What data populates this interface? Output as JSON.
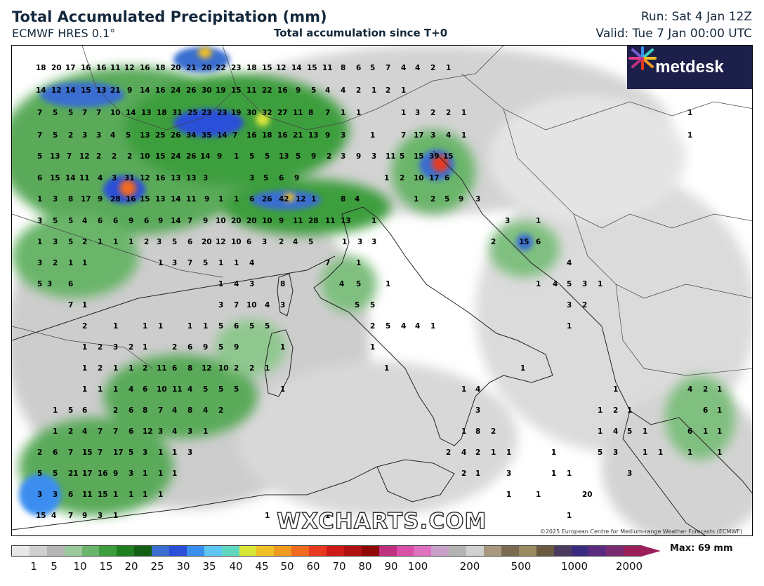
{
  "header": {
    "title": "Total Accumulated Precipitation (mm)",
    "model": "ECMWF HRES 0.1°",
    "subtitle": "Total accumulation since T+0",
    "run": "Run: Sat 4 Jan 12Z",
    "valid": "Valid: Tue 7 Jan 00:00 UTC"
  },
  "branding": {
    "logo_text": "metdesk",
    "watermark": "WXCHARTS.COM",
    "copyright": "©2025 European Centre for Medium-range Weather Forecasts (ECMWF)"
  },
  "colorbar": {
    "max_label": "Max: 69 mm",
    "ticks": [
      "1",
      "5",
      "10",
      "15",
      "20",
      "25",
      "30",
      "35",
      "40",
      "45",
      "50",
      "60",
      "70",
      "80",
      "90",
      "100",
      "200",
      "500",
      "1000",
      "2000"
    ],
    "colors": [
      "#e8e8e8",
      "#cfcfcf",
      "#b5b5b5",
      "#9cc99c",
      "#6bb56b",
      "#3d9e3d",
      "#1f7f1f",
      "#145e14",
      "#3a6ed0",
      "#2a4fd8",
      "#3a8ef0",
      "#5ec6f0",
      "#60d8c0",
      "#d8e63a",
      "#f0c028",
      "#f09a20",
      "#f06a20",
      "#e83a20",
      "#d01a1a",
      "#b01010",
      "#900808",
      "#c03080",
      "#d850a8",
      "#e070c0",
      "#c8a0c8",
      "#b4b4b4",
      "#d0d0d0",
      "#a89880",
      "#7a6a50",
      "#9a8a60",
      "#6a5a40",
      "#4a3a60",
      "#3a2a80",
      "#5a2a80",
      "#7a2a70",
      "#9a1f5a"
    ]
  },
  "station_values": [
    "18",
    "20",
    "17",
    "16",
    "16",
    "11",
    "12",
    "16",
    "18",
    "20",
    "21",
    "20",
    "22",
    "23",
    "18",
    "15",
    "12",
    "14",
    "15",
    "11",
    "8",
    "6",
    "5",
    "7",
    "4",
    "4",
    "2",
    "1",
    "14",
    "12",
    "14",
    "15",
    "13",
    "21",
    "9",
    "14",
    "16",
    "24",
    "26",
    "30",
    "19",
    "15",
    "11",
    "22",
    "16",
    "9",
    "5",
    "4",
    "4",
    "2",
    "1",
    "2",
    "1",
    "7",
    "5",
    "5",
    "7",
    "7",
    "10",
    "14",
    "13",
    "18",
    "31",
    "25",
    "23",
    "23",
    "19",
    "30",
    "32",
    "27",
    "11",
    "8",
    "7",
    "1",
    "1",
    "1",
    "3",
    "2",
    "2",
    "1",
    "1",
    "7",
    "5",
    "2",
    "3",
    "3",
    "4",
    "5",
    "13",
    "25",
    "26",
    "34",
    "35",
    "14",
    "7",
    "16",
    "18",
    "16",
    "21",
    "13",
    "9",
    "3",
    "1",
    "7",
    "17",
    "3",
    "4",
    "1",
    "1",
    "5",
    "13",
    "7",
    "12",
    "2",
    "2",
    "2",
    "10",
    "15",
    "24",
    "26",
    "14",
    "9",
    "1",
    "5",
    "5",
    "13",
    "5",
    "9",
    "2",
    "3",
    "9",
    "3",
    "11",
    "5",
    "15",
    "39",
    "15",
    "6",
    "15",
    "14",
    "11",
    "4",
    "3",
    "31",
    "12",
    "16",
    "13",
    "13",
    "3",
    "3",
    "5",
    "6",
    "9",
    "1",
    "2",
    "10",
    "17",
    "6",
    "1",
    "3",
    "8",
    "17",
    "9",
    "28",
    "16",
    "15",
    "13",
    "14",
    "11",
    "9",
    "1",
    "1",
    "6",
    "26",
    "42",
    "12",
    "1",
    "8",
    "4",
    "1",
    "2",
    "5",
    "9",
    "3",
    "3",
    "5",
    "5",
    "4",
    "6",
    "6",
    "9",
    "6",
    "9",
    "14",
    "7",
    "9",
    "10",
    "20",
    "20",
    "10",
    "9",
    "11",
    "28",
    "11",
    "13",
    "1",
    "3",
    "1",
    "1",
    "3",
    "5",
    "2",
    "1",
    "1",
    "1",
    "2",
    "3",
    "5",
    "6",
    "20",
    "12",
    "10",
    "6",
    "3",
    "2",
    "4",
    "5",
    "1",
    "3",
    "3",
    "2",
    "15",
    "6",
    "3",
    "2",
    "1",
    "1",
    "1",
    "3",
    "7",
    "5",
    "1",
    "1",
    "4",
    "7",
    "1",
    "4",
    "5",
    "3",
    "6",
    "1",
    "4",
    "3",
    "8",
    "4",
    "5",
    "1",
    "1",
    "4",
    "5",
    "3",
    "1",
    "7",
    "1",
    "3",
    "7",
    "10",
    "4",
    "3",
    "5",
    "5",
    "3",
    "2",
    "2",
    "1",
    "1",
    "1",
    "1",
    "1",
    "5",
    "6",
    "5",
    "5",
    "2",
    "5",
    "4",
    "4",
    "1",
    "1",
    "1",
    "2",
    "3",
    "2",
    "1",
    "2",
    "6",
    "9",
    "5",
    "9",
    "1",
    "1",
    "1",
    "2",
    "1",
    "1",
    "2",
    "11",
    "6",
    "8",
    "12",
    "10",
    "2",
    "2",
    "1",
    "1",
    "1",
    "1",
    "1",
    "1",
    "4",
    "6",
    "10",
    "11",
    "4",
    "5",
    "5",
    "5",
    "1",
    "1",
    "4",
    "1",
    "4",
    "2",
    "1",
    "1",
    "5",
    "6",
    "2",
    "6",
    "8",
    "7",
    "4",
    "8",
    "4",
    "2",
    "3",
    "1",
    "2",
    "1",
    "6",
    "1",
    "1",
    "2",
    "4",
    "7",
    "7",
    "6",
    "12",
    "3",
    "4",
    "3",
    "1",
    "1",
    "8",
    "2",
    "1",
    "4",
    "5",
    "1",
    "6",
    "1",
    "1",
    "2",
    "6",
    "7",
    "15",
    "7",
    "17",
    "5",
    "3",
    "1",
    "1",
    "3",
    "2",
    "4",
    "2",
    "1",
    "1",
    "1",
    "5",
    "3",
    "1",
    "1",
    "1",
    "1",
    "5",
    "5",
    "21",
    "17",
    "16",
    "9",
    "3",
    "1",
    "1",
    "1",
    "2",
    "1",
    "3",
    "1",
    "1",
    "3",
    "3",
    "3",
    "6",
    "11",
    "15",
    "1",
    "1",
    "1",
    "1",
    "1",
    "1",
    "20",
    "15",
    "4",
    "7",
    "9",
    "3",
    "1",
    "1",
    "1",
    "1"
  ]
}
